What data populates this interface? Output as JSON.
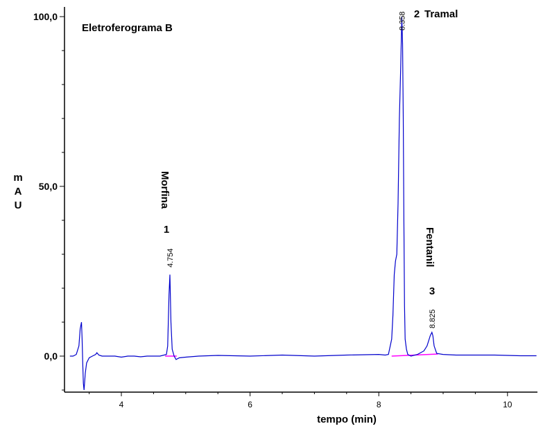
{
  "chart_data": {
    "type": "line",
    "title": "Eletroferograma B",
    "xlabel": "tempo (min)",
    "ylabel": "mAU",
    "ylabel_chars": [
      "m",
      "A",
      "U"
    ],
    "xlim": [
      3.2,
      10.45
    ],
    "ylim": [
      -11,
      101
    ],
    "x_ticks": [
      4,
      6,
      8,
      10
    ],
    "y_tick_labels": [
      {
        "value": 0,
        "label": "0,0"
      },
      {
        "value": 50,
        "label": "50,0"
      },
      {
        "value": 100,
        "label": "100,0"
      }
    ],
    "colors": {
      "trace": "#0000cc",
      "baseline": "#ff00ff",
      "axis": "#000000"
    },
    "series": [
      {
        "x": [
          3.2,
          3.25,
          3.3,
          3.34,
          3.36,
          3.38,
          3.39,
          3.4,
          3.41,
          3.42,
          3.44,
          3.46,
          3.5,
          3.55,
          3.6,
          3.62,
          3.65,
          3.7,
          3.8,
          3.9,
          4.0,
          4.1,
          4.2,
          4.3,
          4.4,
          4.5,
          4.6,
          4.7,
          4.72,
          4.74,
          4.754,
          4.77,
          4.79,
          4.82,
          4.85,
          4.9,
          5.0,
          5.2,
          5.5,
          6.0,
          6.5,
          7.0,
          7.5,
          8.0,
          8.1,
          8.15,
          8.2,
          8.22,
          8.24,
          8.26,
          8.28,
          8.3,
          8.32,
          8.34,
          8.358,
          8.37,
          8.38,
          8.39,
          8.4,
          8.41,
          8.43,
          8.45,
          8.5,
          8.6,
          8.65,
          8.7,
          8.75,
          8.8,
          8.825,
          8.84,
          8.86,
          8.9,
          9.0,
          9.2,
          9.5,
          9.8,
          10.0,
          10.2,
          10.45
        ],
        "y": [
          0,
          0,
          0.5,
          3,
          8,
          10,
          5,
          -2,
          -8,
          -10,
          -5,
          -2,
          -0.5,
          0,
          0.5,
          1,
          0.3,
          0,
          0,
          0,
          -0.3,
          0,
          0,
          -0.2,
          0,
          0,
          0,
          0.5,
          3,
          18,
          24,
          10,
          2,
          0,
          -1,
          -0.5,
          -0.3,
          0,
          0.2,
          0,
          0.3,
          0,
          0.3,
          0.5,
          0.3,
          0.5,
          5,
          12,
          24,
          28,
          30,
          45,
          70,
          85,
          100,
          92,
          70,
          40,
          15,
          5,
          2,
          0.5,
          0,
          0.5,
          1,
          1.5,
          3,
          6,
          7,
          6,
          3,
          0.8,
          0.5,
          0.3,
          0.3,
          0.3,
          0.2,
          0.1,
          0.1
        ]
      }
    ],
    "baseline_segments": [
      {
        "x": [
          4.68,
          4.86
        ],
        "y": [
          0,
          0
        ]
      },
      {
        "x": [
          8.2,
          8.92
        ],
        "y": [
          0,
          0.6
        ]
      }
    ],
    "peaks": [
      {
        "number": "1",
        "name": "Morfina",
        "rt": "4.754",
        "x": 4.754,
        "y": 24
      },
      {
        "number": "2",
        "name": "Tramal",
        "rt": "8.358",
        "x": 8.358,
        "y": 100
      },
      {
        "number": "3",
        "name": "Fentanil",
        "rt": "8.825",
        "x": 8.825,
        "y": 7
      }
    ]
  }
}
